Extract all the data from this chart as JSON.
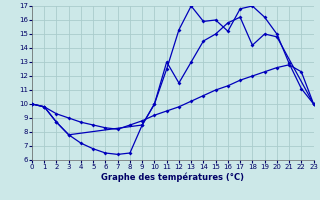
{
  "title": "Graphe des températures (°C)",
  "bg_color": "#cce8e8",
  "line_color": "#0000bb",
  "grid_color": "#aacccc",
  "xlim": [
    0,
    23
  ],
  "ylim": [
    6,
    17
  ],
  "xticks": [
    0,
    1,
    2,
    3,
    4,
    5,
    6,
    7,
    8,
    9,
    10,
    11,
    12,
    13,
    14,
    15,
    16,
    17,
    18,
    19,
    20,
    21,
    22,
    23
  ],
  "yticks": [
    6,
    7,
    8,
    9,
    10,
    11,
    12,
    13,
    14,
    15,
    16,
    17
  ],
  "series1_x": [
    0,
    1,
    2,
    3,
    4,
    5,
    6,
    7,
    8,
    9,
    10,
    11,
    12,
    13,
    14,
    15,
    16,
    17,
    18,
    19,
    20,
    21,
    22,
    23
  ],
  "series1_y": [
    10.0,
    9.8,
    8.7,
    7.8,
    7.2,
    6.8,
    6.5,
    6.4,
    6.5,
    8.5,
    10.0,
    12.5,
    15.3,
    17.0,
    15.9,
    16.0,
    15.2,
    16.8,
    17.0,
    16.2,
    15.0,
    12.9,
    11.1,
    10.0
  ],
  "series2_x": [
    0,
    1,
    2,
    3,
    9,
    10,
    11,
    12,
    13,
    14,
    15,
    16,
    17,
    18,
    19,
    20,
    23
  ],
  "series2_y": [
    10.0,
    9.8,
    8.7,
    7.8,
    8.5,
    10.0,
    13.0,
    11.5,
    13.0,
    14.5,
    15.0,
    15.8,
    16.2,
    14.2,
    15.0,
    14.8,
    10.0
  ],
  "series3_x": [
    0,
    1,
    2,
    3,
    4,
    5,
    6,
    7,
    8,
    9,
    10,
    11,
    12,
    13,
    14,
    15,
    16,
    17,
    18,
    19,
    20,
    21,
    22,
    23
  ],
  "series3_y": [
    10.0,
    9.8,
    9.3,
    9.0,
    8.7,
    8.5,
    8.3,
    8.2,
    8.5,
    8.8,
    9.2,
    9.5,
    9.8,
    10.2,
    10.6,
    11.0,
    11.3,
    11.7,
    12.0,
    12.3,
    12.6,
    12.8,
    12.3,
    10.0
  ]
}
